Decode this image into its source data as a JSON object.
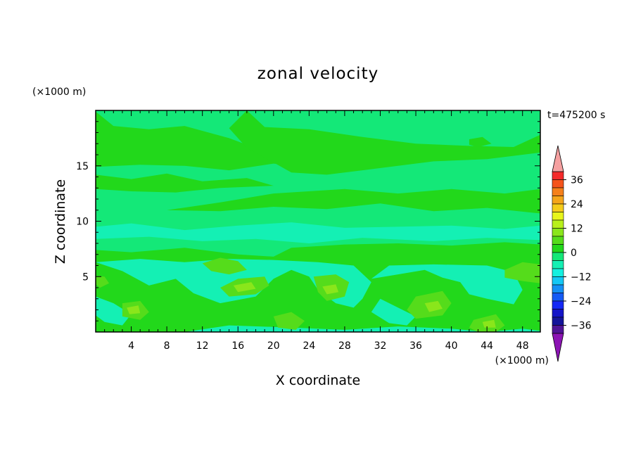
{
  "chart_data": {
    "type": "heatmap",
    "title": "zonal velocity",
    "xlabel": "X coordinate",
    "ylabel": "Z coordinate",
    "x_unit": "(×1000 m)",
    "y_unit": "(×1000 m)",
    "time_label": "t=475200 s",
    "xlim": [
      0,
      50
    ],
    "ylim": [
      0,
      20
    ],
    "x_ticks": [
      4,
      8,
      12,
      16,
      20,
      24,
      28,
      32,
      36,
      40,
      44,
      48
    ],
    "y_ticks": [
      5,
      10,
      15
    ],
    "colorbar": {
      "ticks": [
        36,
        24,
        12,
        0,
        -12,
        -24,
        -36
      ],
      "tick_labels": [
        "36",
        "24",
        "12",
        "0",
        "−12",
        "−24",
        "−36"
      ],
      "levels": [
        {
          "min": 36,
          "max": 40,
          "color": "#f52a2a"
        },
        {
          "min": 32,
          "max": 36,
          "color": "#f5531b"
        },
        {
          "min": 28,
          "max": 32,
          "color": "#f5801b"
        },
        {
          "min": 24,
          "max": 28,
          "color": "#f5a51b"
        },
        {
          "min": 20,
          "max": 24,
          "color": "#f5cc1b"
        },
        {
          "min": 16,
          "max": 20,
          "color": "#e8f51b"
        },
        {
          "min": 12,
          "max": 16,
          "color": "#b8f01b"
        },
        {
          "min": 8,
          "max": 12,
          "color": "#8ae61b"
        },
        {
          "min": 4,
          "max": 8,
          "color": "#55dc1b"
        },
        {
          "min": 0,
          "max": 4,
          "color": "#22d81b"
        },
        {
          "min": -4,
          "max": 0,
          "color": "#14e878"
        },
        {
          "min": -8,
          "max": -4,
          "color": "#14f0b4"
        },
        {
          "min": -12,
          "max": -8,
          "color": "#14f0e0"
        },
        {
          "min": -16,
          "max": -12,
          "color": "#14c8f5"
        },
        {
          "min": -20,
          "max": -16,
          "color": "#1490f5"
        },
        {
          "min": -24,
          "max": -20,
          "color": "#145af5"
        },
        {
          "min": -28,
          "max": -24,
          "color": "#1428f5"
        },
        {
          "min": -32,
          "max": -28,
          "color": "#1414c8"
        },
        {
          "min": -36,
          "max": -32,
          "color": "#14149a"
        },
        {
          "min": -40,
          "max": -36,
          "color": "#501496"
        }
      ],
      "over_color": "#f5a0a0",
      "under_color": "#8c14b4"
    },
    "background_field_color": "#14e878",
    "regions": [
      {
        "value": -6,
        "points": [
          [
            0,
            9.5
          ],
          [
            4,
            9.8
          ],
          [
            10,
            9.2
          ],
          [
            16,
            9.6
          ],
          [
            22,
            9.9
          ],
          [
            28,
            9.4
          ],
          [
            34,
            9.5
          ],
          [
            40,
            9.6
          ],
          [
            46,
            9.3
          ],
          [
            50,
            9.6
          ],
          [
            50,
            8.3
          ],
          [
            44,
            8.5
          ],
          [
            38,
            8.2
          ],
          [
            30,
            8.5
          ],
          [
            24,
            8.0
          ],
          [
            18,
            8.4
          ],
          [
            12,
            8.2
          ],
          [
            6,
            8.6
          ],
          [
            0,
            8.4
          ]
        ]
      },
      {
        "value": 2,
        "points": [
          [
            0,
            19.9
          ],
          [
            2,
            18.6
          ],
          [
            6,
            18.3
          ],
          [
            10,
            18.6
          ],
          [
            15,
            17.5
          ],
          [
            18,
            16.6
          ],
          [
            22,
            15.8
          ],
          [
            26,
            16.0
          ],
          [
            29,
            15.3
          ],
          [
            25,
            14.8
          ],
          [
            20,
            15.2
          ],
          [
            15,
            14.6
          ],
          [
            10,
            15.0
          ],
          [
            5,
            15.1
          ],
          [
            0,
            14.9
          ]
        ]
      },
      {
        "value": 2,
        "points": [
          [
            0,
            14.2
          ],
          [
            4,
            13.8
          ],
          [
            8,
            14.3
          ],
          [
            12,
            13.6
          ],
          [
            17,
            13.9
          ],
          [
            20,
            13.2
          ],
          [
            14,
            13.0
          ],
          [
            9,
            12.6
          ],
          [
            4,
            12.7
          ],
          [
            0,
            12.9
          ]
        ]
      },
      {
        "value": 2,
        "points": [
          [
            17,
            20
          ],
          [
            19,
            18.5
          ],
          [
            24,
            18.3
          ],
          [
            30,
            17.6
          ],
          [
            36,
            17.0
          ],
          [
            42,
            16.8
          ],
          [
            47,
            16.7
          ],
          [
            50,
            17.8
          ],
          [
            50,
            16.2
          ],
          [
            44,
            15.6
          ],
          [
            38,
            15.4
          ],
          [
            30,
            14.6
          ],
          [
            26,
            14.2
          ],
          [
            22,
            14.4
          ],
          [
            20,
            15.3
          ],
          [
            17,
            16.6
          ],
          [
            15,
            18.4
          ]
        ]
      },
      {
        "value": 2,
        "points": [
          [
            8,
            11.0
          ],
          [
            14,
            11.7
          ],
          [
            20,
            12.5
          ],
          [
            28,
            12.9
          ],
          [
            34,
            12.5
          ],
          [
            40,
            12.9
          ],
          [
            46,
            12.5
          ],
          [
            50,
            12.9
          ],
          [
            50,
            10.7
          ],
          [
            44,
            11.2
          ],
          [
            38,
            10.9
          ],
          [
            32,
            11.6
          ],
          [
            26,
            11.1
          ],
          [
            20,
            11.3
          ],
          [
            14,
            10.9
          ]
        ]
      },
      {
        "value": 2,
        "points": [
          [
            0,
            7.4
          ],
          [
            4,
            7.2
          ],
          [
            10,
            7.6
          ],
          [
            16,
            7.0
          ],
          [
            20,
            6.8
          ],
          [
            22,
            7.6
          ],
          [
            28,
            7.9
          ],
          [
            34,
            8.0
          ],
          [
            40,
            7.8
          ],
          [
            46,
            8.1
          ],
          [
            50,
            7.9
          ],
          [
            50,
            0
          ],
          [
            0,
            0
          ]
        ]
      },
      {
        "value": -6,
        "points": [
          [
            0,
            6.3
          ],
          [
            3,
            5.5
          ],
          [
            6,
            4.2
          ],
          [
            9,
            4.8
          ],
          [
            11,
            3.5
          ],
          [
            14,
            2.6
          ],
          [
            18,
            3.2
          ],
          [
            20,
            4.8
          ],
          [
            22,
            5.6
          ],
          [
            24,
            5.0
          ],
          [
            25,
            3.8
          ],
          [
            27,
            2.6
          ],
          [
            29,
            2.2
          ],
          [
            30,
            3.0
          ],
          [
            31,
            4.5
          ],
          [
            29,
            6.0
          ],
          [
            25,
            6.3
          ],
          [
            20,
            6.5
          ],
          [
            15,
            6.6
          ],
          [
            10,
            6.3
          ],
          [
            5,
            6.6
          ]
        ]
      },
      {
        "value": -6,
        "points": [
          [
            31,
            4.8
          ],
          [
            34,
            5.2
          ],
          [
            37,
            5.6
          ],
          [
            39,
            4.9
          ],
          [
            41,
            4.5
          ],
          [
            42,
            3.4
          ],
          [
            44,
            3.0
          ],
          [
            47,
            2.5
          ],
          [
            48,
            3.8
          ],
          [
            47,
            5.4
          ],
          [
            44,
            6.0
          ],
          [
            38,
            6.1
          ],
          [
            33,
            6.0
          ]
        ]
      },
      {
        "value": -6,
        "points": [
          [
            32,
            3.0
          ],
          [
            34,
            2.2
          ],
          [
            36,
            1.4
          ],
          [
            35,
            0.6
          ],
          [
            33,
            0.8
          ],
          [
            31,
            1.8
          ]
        ]
      },
      {
        "value": -6,
        "points": [
          [
            10,
            0
          ],
          [
            15,
            0.6
          ],
          [
            22,
            0.4
          ],
          [
            28,
            0.2
          ],
          [
            34,
            0.5
          ],
          [
            40,
            0.3
          ],
          [
            44,
            0
          ],
          [
            48,
            0.3
          ],
          [
            50,
            0.1
          ],
          [
            50,
            0
          ],
          [
            10,
            0
          ]
        ]
      },
      {
        "value": -6,
        "points": [
          [
            0,
            3.2
          ],
          [
            2,
            2.6
          ],
          [
            4,
            1.6
          ],
          [
            3,
            0.6
          ],
          [
            1,
            0.9
          ],
          [
            0,
            1.5
          ]
        ]
      },
      {
        "value": 6,
        "points": [
          [
            12,
            6.2
          ],
          [
            14,
            6.7
          ],
          [
            16,
            6.4
          ],
          [
            17,
            5.6
          ],
          [
            15,
            5.2
          ],
          [
            13,
            5.5
          ]
        ]
      },
      {
        "value": 6,
        "points": [
          [
            14,
            4.0
          ],
          [
            16,
            4.8
          ],
          [
            19,
            5.0
          ],
          [
            19.5,
            4.2
          ],
          [
            18,
            3.4
          ],
          [
            15,
            3.2
          ]
        ]
      },
      {
        "value": 6,
        "points": [
          [
            24.5,
            5.0
          ],
          [
            27,
            5.2
          ],
          [
            28.5,
            4.5
          ],
          [
            28,
            3.2
          ],
          [
            26,
            2.8
          ],
          [
            25,
            3.6
          ]
        ]
      },
      {
        "value": 6,
        "points": [
          [
            36,
            3.2
          ],
          [
            39,
            3.7
          ],
          [
            40,
            2.6
          ],
          [
            39,
            1.5
          ],
          [
            36,
            1.2
          ],
          [
            35,
            2.0
          ]
        ]
      },
      {
        "value": 6,
        "points": [
          [
            3,
            2.6
          ],
          [
            5,
            2.8
          ],
          [
            6,
            1.8
          ],
          [
            5,
            1.1
          ],
          [
            3,
            1.4
          ]
        ]
      },
      {
        "value": 6,
        "points": [
          [
            42.5,
            1.1
          ],
          [
            45,
            1.6
          ],
          [
            46,
            0.6
          ],
          [
            45,
            0
          ],
          [
            43,
            0
          ],
          [
            42,
            0.4
          ]
        ]
      },
      {
        "value": 6,
        "points": [
          [
            46,
            5.6
          ],
          [
            48,
            6.3
          ],
          [
            50,
            6.1
          ],
          [
            50,
            4.4
          ],
          [
            48,
            4.6
          ],
          [
            46,
            4.9
          ]
        ]
      },
      {
        "value": 6,
        "points": [
          [
            20,
            1.4
          ],
          [
            22,
            1.8
          ],
          [
            23.5,
            1.0
          ],
          [
            22.5,
            0.2
          ],
          [
            20.5,
            0.4
          ]
        ]
      },
      {
        "value": 6,
        "points": [
          [
            0,
            5.0
          ],
          [
            1,
            5.0
          ],
          [
            1.5,
            4.4
          ],
          [
            0.5,
            4.0
          ],
          [
            0,
            4.3
          ]
        ]
      },
      {
        "value": 10,
        "points": [
          [
            15.5,
            4.2
          ],
          [
            17.5,
            4.5
          ],
          [
            18,
            3.9
          ],
          [
            16,
            3.6
          ]
        ]
      },
      {
        "value": 10,
        "points": [
          [
            37,
            2.6
          ],
          [
            38.5,
            2.8
          ],
          [
            39,
            2.1
          ],
          [
            37.5,
            1.8
          ]
        ]
      },
      {
        "value": 10,
        "points": [
          [
            3.5,
            2.2
          ],
          [
            4.8,
            2.4
          ],
          [
            5,
            1.7
          ],
          [
            3.8,
            1.6
          ]
        ]
      },
      {
        "value": 10,
        "points": [
          [
            43.5,
            0.9
          ],
          [
            44.8,
            1.1
          ],
          [
            45,
            0.4
          ],
          [
            43.7,
            0.4
          ]
        ]
      },
      {
        "value": 10,
        "points": [
          [
            25.5,
            4.1
          ],
          [
            27,
            4.3
          ],
          [
            27.3,
            3.6
          ],
          [
            26,
            3.4
          ]
        ]
      },
      {
        "value": 2,
        "points": [
          [
            42,
            17.4
          ],
          [
            43.5,
            17.6
          ],
          [
            44.5,
            17.0
          ],
          [
            43,
            16.7
          ],
          [
            42,
            16.9
          ]
        ]
      }
    ]
  }
}
